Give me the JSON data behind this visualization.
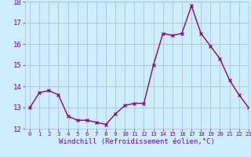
{
  "x": [
    0,
    1,
    2,
    3,
    4,
    5,
    6,
    7,
    8,
    9,
    10,
    11,
    12,
    13,
    14,
    15,
    16,
    17,
    18,
    19,
    20,
    21,
    22,
    23
  ],
  "y": [
    13.0,
    13.7,
    13.8,
    13.6,
    12.6,
    12.4,
    12.4,
    12.3,
    12.2,
    12.7,
    13.1,
    13.2,
    13.2,
    15.0,
    16.5,
    16.4,
    16.5,
    17.8,
    16.5,
    15.9,
    15.3,
    14.3,
    13.6,
    13.0
  ],
  "line_color": "#8B008B",
  "marker": "x",
  "marker_size": 2.5,
  "line_width": 1.0,
  "bg_color": "#cceeff",
  "grid_color": "#aabbcc",
  "xlabel": "Windchill (Refroidissement éolien,°C)",
  "xlabel_fontsize": 6.5,
  "ylim": [
    12,
    18
  ],
  "xlim": [
    -0.5,
    23
  ],
  "yticks": [
    12,
    13,
    14,
    15,
    16,
    17,
    18
  ],
  "xticks": [
    0,
    1,
    2,
    3,
    4,
    5,
    6,
    7,
    8,
    9,
    10,
    11,
    12,
    13,
    14,
    15,
    16,
    17,
    18,
    19,
    20,
    21,
    22,
    23
  ],
  "ytick_fontsize": 6.5,
  "xtick_fontsize": 5.2,
  "tick_color": "#7700aa"
}
